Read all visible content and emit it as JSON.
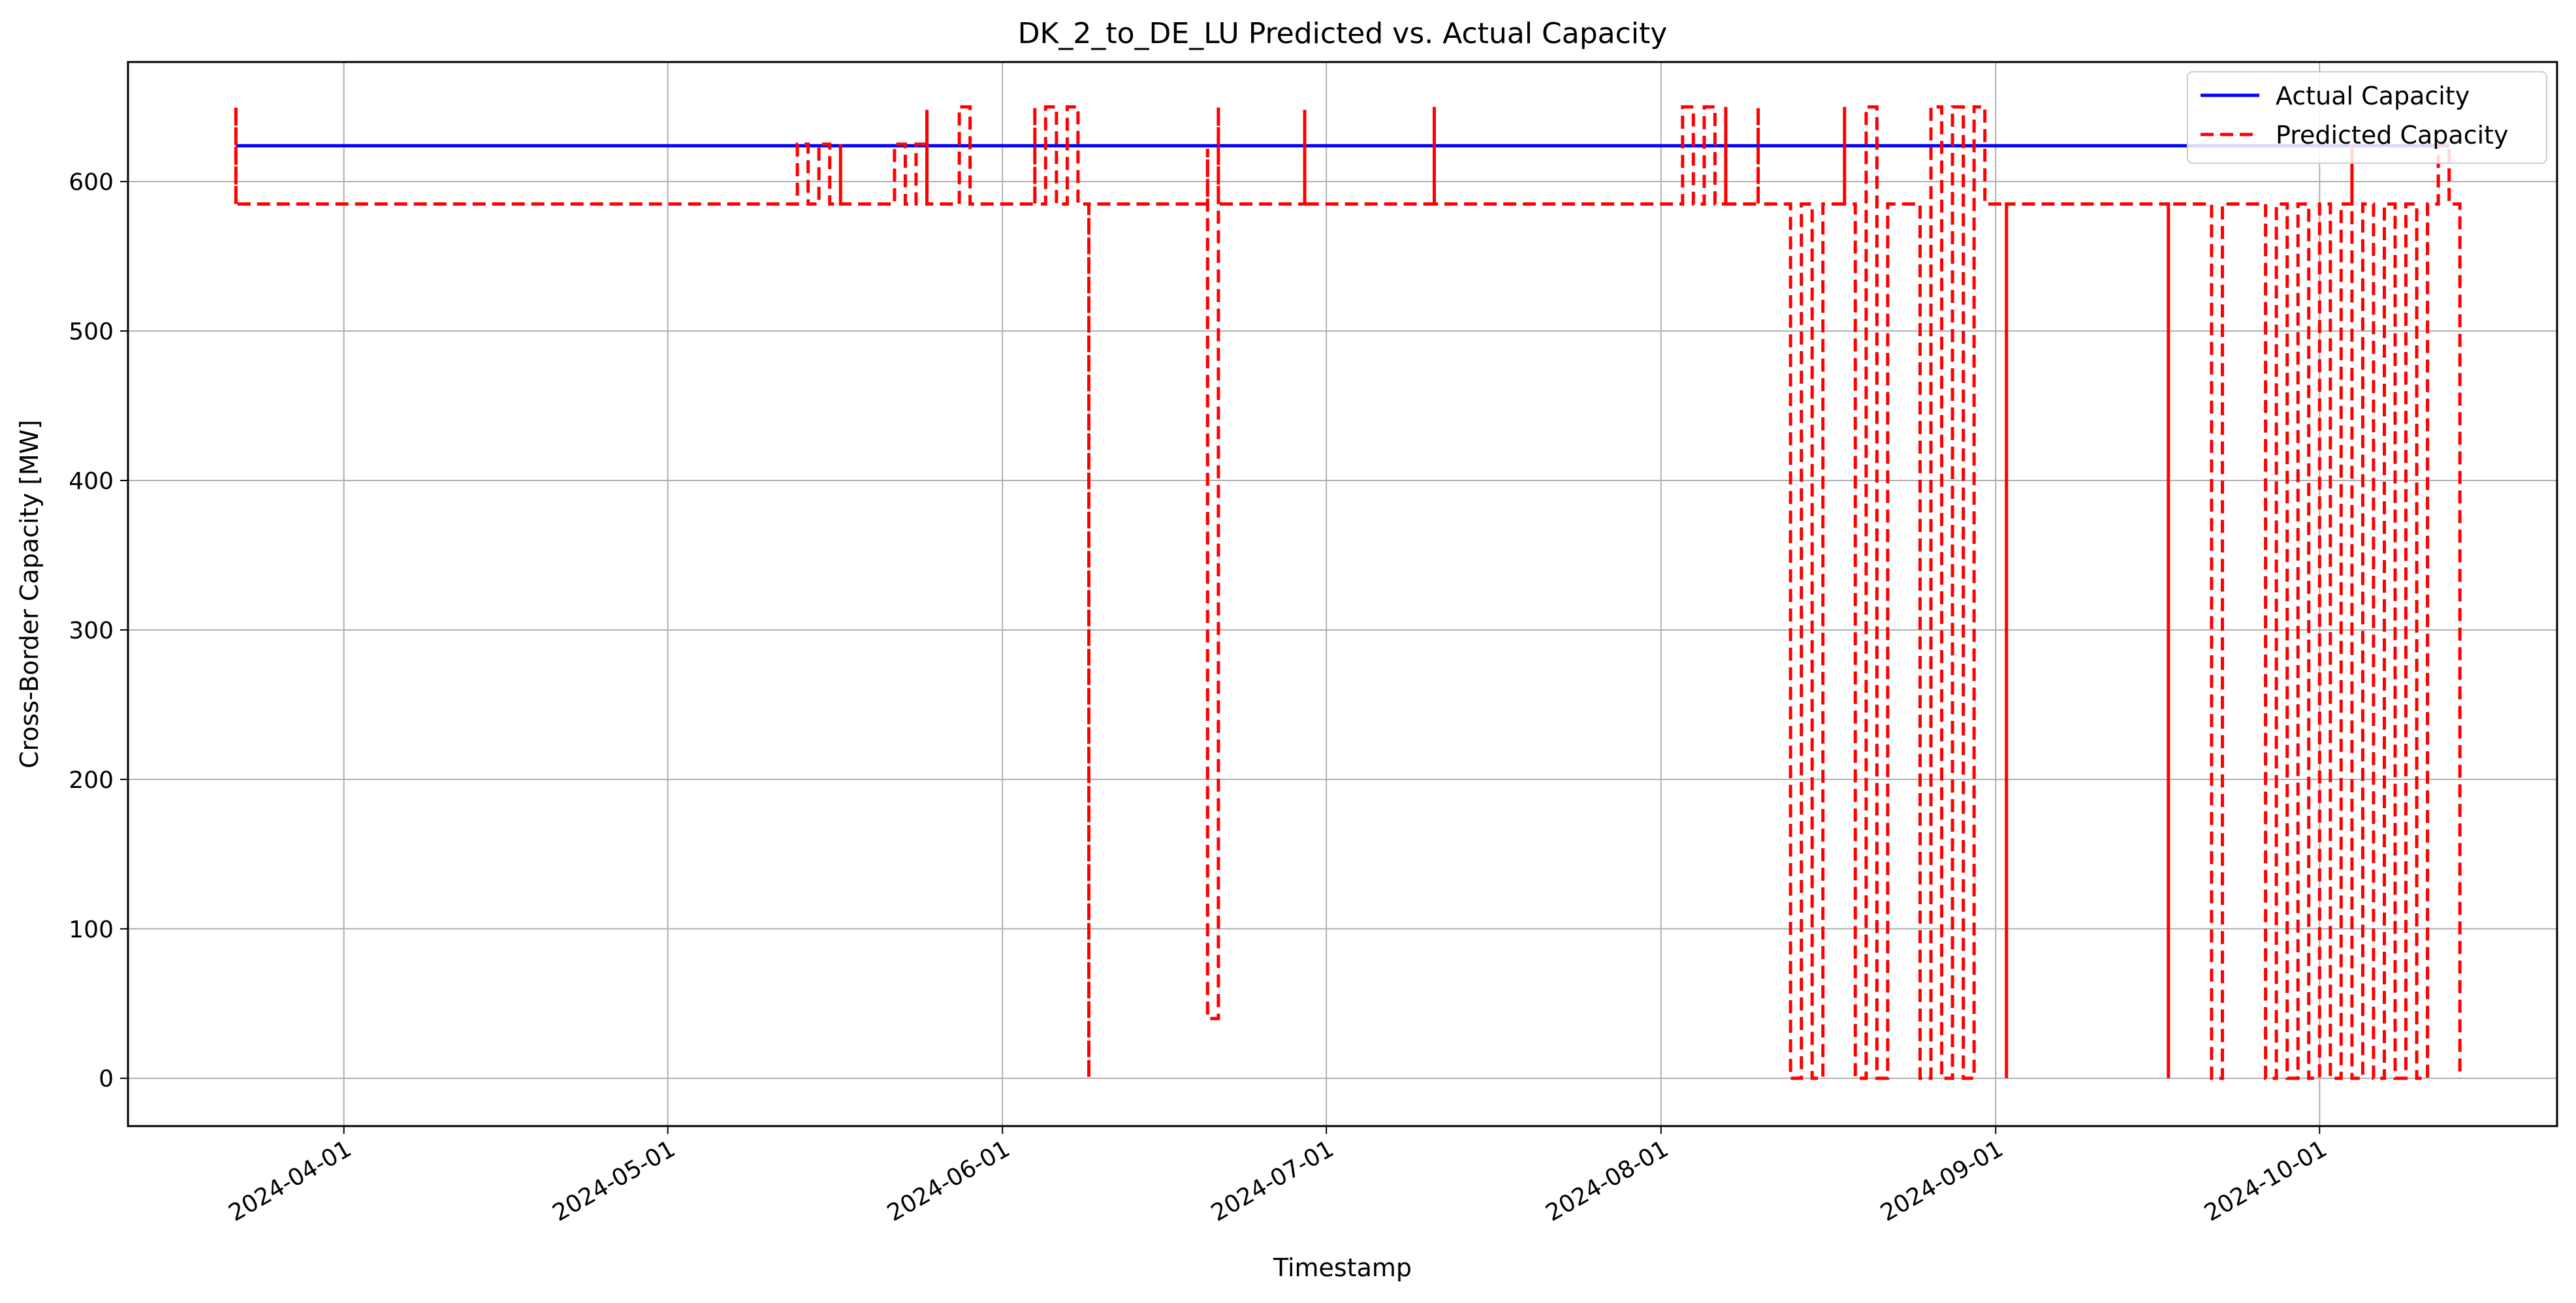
{
  "chart_data": {
    "type": "line",
    "title": "DK_2_to_DE_LU Predicted vs. Actual Capacity",
    "xlabel": "Timestamp",
    "ylabel": "Cross-Border Capacity [MW]",
    "x_type": "date",
    "xlim": [
      "2024-03-12",
      "2024-10-23"
    ],
    "ylim": [
      -32,
      680
    ],
    "x_ticks": [
      "2024-04-01",
      "2024-05-01",
      "2024-06-01",
      "2024-07-01",
      "2024-08-01",
      "2024-09-01",
      "2024-10-01"
    ],
    "y_ticks": [
      0,
      100,
      200,
      300,
      400,
      500,
      600
    ],
    "grid": true,
    "legend_position": "top-right",
    "series": [
      {
        "name": "Actual Capacity",
        "color": "#0000ff",
        "style": "solid",
        "points": [
          [
            "2024-03-22",
            624
          ],
          [
            "2024-10-13",
            624
          ]
        ]
      },
      {
        "name": "Predicted Capacity",
        "color": "#ff0000",
        "style": "dashed",
        "points": [
          [
            "2024-03-22",
            585
          ],
          [
            "2024-03-22",
            650
          ],
          [
            "2024-03-22",
            585
          ],
          [
            "2024-05-13",
            585
          ],
          [
            "2024-05-13",
            625
          ],
          [
            "2024-05-14",
            625
          ],
          [
            "2024-05-14",
            585
          ],
          [
            "2024-05-15",
            585
          ],
          [
            "2024-05-15",
            625
          ],
          [
            "2024-05-16",
            625
          ],
          [
            "2024-05-16",
            585
          ],
          [
            "2024-05-17",
            585
          ],
          [
            "2024-05-17",
            625
          ],
          [
            "2024-05-17",
            585
          ],
          [
            "2024-05-22",
            585
          ],
          [
            "2024-05-22",
            625
          ],
          [
            "2024-05-23",
            625
          ],
          [
            "2024-05-23",
            585
          ],
          [
            "2024-05-24",
            585
          ],
          [
            "2024-05-24",
            625
          ],
          [
            "2024-05-25",
            625
          ],
          [
            "2024-05-25",
            585
          ],
          [
            "2024-05-25",
            648
          ],
          [
            "2024-05-25",
            585
          ],
          [
            "2024-05-28",
            585
          ],
          [
            "2024-05-28",
            650
          ],
          [
            "2024-05-29",
            650
          ],
          [
            "2024-05-29",
            585
          ],
          [
            "2024-06-04",
            585
          ],
          [
            "2024-06-04",
            650
          ],
          [
            "2024-06-04",
            585
          ],
          [
            "2024-06-05",
            585
          ],
          [
            "2024-06-05",
            650
          ],
          [
            "2024-06-06",
            650
          ],
          [
            "2024-06-06",
            585
          ],
          [
            "2024-06-07",
            585
          ],
          [
            "2024-06-07",
            650
          ],
          [
            "2024-06-08",
            650
          ],
          [
            "2024-06-08",
            585
          ],
          [
            "2024-06-09",
            585
          ],
          [
            "2024-06-09",
            0
          ],
          [
            "2024-06-09",
            585
          ],
          [
            "2024-06-20",
            585
          ],
          [
            "2024-06-20",
            622
          ],
          [
            "2024-06-20",
            40
          ],
          [
            "2024-06-21",
            40
          ],
          [
            "2024-06-21",
            585
          ],
          [
            "2024-06-21",
            650
          ],
          [
            "2024-06-21",
            585
          ],
          [
            "2024-06-29",
            585
          ],
          [
            "2024-06-29",
            648
          ],
          [
            "2024-06-29",
            585
          ],
          [
            "2024-07-11",
            585
          ],
          [
            "2024-07-11",
            650
          ],
          [
            "2024-07-11",
            585
          ],
          [
            "2024-08-03",
            585
          ],
          [
            "2024-08-03",
            650
          ],
          [
            "2024-08-04",
            650
          ],
          [
            "2024-08-04",
            585
          ],
          [
            "2024-08-05",
            585
          ],
          [
            "2024-08-05",
            650
          ],
          [
            "2024-08-06",
            650
          ],
          [
            "2024-08-06",
            585
          ],
          [
            "2024-08-07",
            585
          ],
          [
            "2024-08-07",
            650
          ],
          [
            "2024-08-07",
            585
          ],
          [
            "2024-08-10",
            585
          ],
          [
            "2024-08-10",
            650
          ],
          [
            "2024-08-10",
            585
          ],
          [
            "2024-08-13",
            585
          ],
          [
            "2024-08-13",
            0
          ],
          [
            "2024-08-14",
            0
          ],
          [
            "2024-08-14",
            585
          ],
          [
            "2024-08-15",
            585
          ],
          [
            "2024-08-15",
            0
          ],
          [
            "2024-08-16",
            0
          ],
          [
            "2024-08-16",
            585
          ],
          [
            "2024-08-18",
            585
          ],
          [
            "2024-08-18",
            650
          ],
          [
            "2024-08-18",
            585
          ],
          [
            "2024-08-19",
            585
          ],
          [
            "2024-08-19",
            0
          ],
          [
            "2024-08-20",
            0
          ],
          [
            "2024-08-20",
            650
          ],
          [
            "2024-08-21",
            650
          ],
          [
            "2024-08-21",
            0
          ],
          [
            "2024-08-22",
            0
          ],
          [
            "2024-08-22",
            585
          ],
          [
            "2024-08-25",
            585
          ],
          [
            "2024-08-25",
            0
          ],
          [
            "2024-08-26",
            0
          ],
          [
            "2024-08-26",
            650
          ],
          [
            "2024-08-27",
            650
          ],
          [
            "2024-08-27",
            0
          ],
          [
            "2024-08-28",
            0
          ],
          [
            "2024-08-28",
            650
          ],
          [
            "2024-08-29",
            650
          ],
          [
            "2024-08-29",
            0
          ],
          [
            "2024-08-30",
            0
          ],
          [
            "2024-08-30",
            650
          ],
          [
            "2024-08-31",
            650
          ],
          [
            "2024-08-31",
            585
          ],
          [
            "2024-09-02",
            585
          ],
          [
            "2024-09-02",
            0
          ],
          [
            "2024-09-02",
            585
          ],
          [
            "2024-09-17",
            585
          ],
          [
            "2024-09-17",
            0
          ],
          [
            "2024-09-17",
            585
          ],
          [
            "2024-09-21",
            585
          ],
          [
            "2024-09-21",
            0
          ],
          [
            "2024-09-22",
            0
          ],
          [
            "2024-09-22",
            585
          ],
          [
            "2024-09-26",
            585
          ],
          [
            "2024-09-26",
            0
          ],
          [
            "2024-09-27",
            0
          ],
          [
            "2024-09-27",
            585
          ],
          [
            "2024-09-28",
            585
          ],
          [
            "2024-09-28",
            0
          ],
          [
            "2024-09-29",
            0
          ],
          [
            "2024-09-29",
            585
          ],
          [
            "2024-09-30",
            585
          ],
          [
            "2024-09-30",
            0
          ],
          [
            "2024-10-01",
            0
          ],
          [
            "2024-10-01",
            585
          ],
          [
            "2024-10-02",
            585
          ],
          [
            "2024-10-02",
            0
          ],
          [
            "2024-10-03",
            0
          ],
          [
            "2024-10-03",
            585
          ],
          [
            "2024-10-04",
            585
          ],
          [
            "2024-10-04",
            625
          ],
          [
            "2024-10-04",
            0
          ],
          [
            "2024-10-05",
            0
          ],
          [
            "2024-10-05",
            585
          ],
          [
            "2024-10-06",
            585
          ],
          [
            "2024-10-06",
            0
          ],
          [
            "2024-10-07",
            0
          ],
          [
            "2024-10-07",
            585
          ],
          [
            "2024-10-08",
            585
          ],
          [
            "2024-10-08",
            0
          ],
          [
            "2024-10-09",
            0
          ],
          [
            "2024-10-09",
            585
          ],
          [
            "2024-10-10",
            585
          ],
          [
            "2024-10-10",
            0
          ],
          [
            "2024-10-11",
            0
          ],
          [
            "2024-10-11",
            585
          ],
          [
            "2024-10-12",
            585
          ],
          [
            "2024-10-12",
            625
          ],
          [
            "2024-10-13",
            625
          ],
          [
            "2024-10-13",
            585
          ],
          [
            "2024-10-14",
            585
          ],
          [
            "2024-10-14",
            0
          ]
        ]
      }
    ]
  }
}
